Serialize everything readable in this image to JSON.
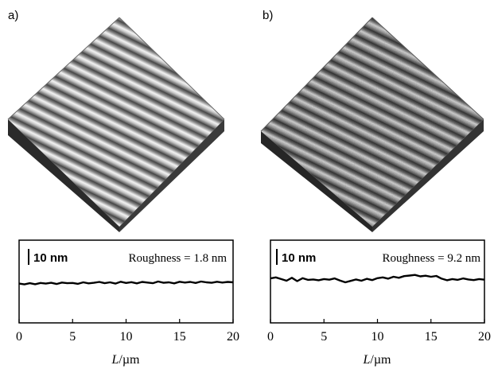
{
  "panels": [
    {
      "letter": "a)",
      "scale_bar_label": "10 nm",
      "roughness_label": "Roughness = 1.8 nm",
      "roughness_nm": 1.8,
      "x_label_italic": "L",
      "x_label_rest": "/µm"
    },
    {
      "letter": "b)",
      "scale_bar_label": "10 nm",
      "roughness_label": "Roughness = 9.2 nm",
      "roughness_nm": 9.2,
      "x_label_italic": "L",
      "x_label_rest": "/µm"
    }
  ],
  "chart_data": [
    {
      "type": "line",
      "xlim": [
        0,
        20
      ],
      "ylim": [
        0,
        40
      ],
      "xticks": [
        "0",
        "5",
        "10",
        "15",
        "20"
      ],
      "series": [
        {
          "x": [
            0,
            0.5,
            1,
            1.5,
            2,
            2.5,
            3,
            3.5,
            4,
            4.5,
            5,
            5.5,
            6,
            6.5,
            7,
            7.5,
            8,
            8.5,
            9,
            9.5,
            10,
            10.5,
            11,
            11.5,
            12,
            12.5,
            13,
            13.5,
            14,
            14.5,
            15,
            15.5,
            16,
            16.5,
            17,
            17.5,
            18,
            18.5,
            19,
            19.5,
            20
          ],
          "y": [
            19.0,
            18.6,
            19.2,
            18.7,
            19.3,
            19.0,
            19.4,
            18.8,
            19.5,
            19.2,
            19.3,
            18.9,
            19.6,
            19.1,
            19.4,
            19.8,
            19.2,
            19.6,
            19.0,
            19.9,
            19.3,
            19.7,
            19.1,
            19.8,
            19.5,
            19.2,
            20.0,
            19.4,
            19.6,
            19.1,
            19.9,
            19.5,
            19.8,
            19.3,
            20.0,
            19.6,
            19.4,
            19.9,
            19.5,
            19.8,
            19.6
          ]
        }
      ]
    },
    {
      "type": "line",
      "xlim": [
        0,
        20
      ],
      "ylim": [
        0,
        40
      ],
      "xticks": [
        "0",
        "5",
        "10",
        "15",
        "20"
      ],
      "series": [
        {
          "x": [
            0,
            0.5,
            1,
            1.5,
            2,
            2.5,
            3,
            3.5,
            4,
            4.5,
            5,
            5.5,
            6,
            6.5,
            7,
            7.5,
            8,
            8.5,
            9,
            9.5,
            10,
            10.5,
            11,
            11.5,
            12,
            12.5,
            13,
            13.5,
            14,
            14.5,
            15,
            15.5,
            16,
            16.5,
            17,
            17.5,
            18,
            18.5,
            19,
            19.5,
            20
          ],
          "y": [
            21.5,
            22.0,
            21.2,
            20.4,
            21.8,
            20.2,
            21.6,
            20.8,
            21.0,
            20.6,
            21.2,
            20.9,
            21.5,
            20.5,
            19.6,
            20.3,
            21.0,
            20.4,
            21.3,
            20.7,
            21.6,
            22.0,
            21.4,
            22.3,
            21.8,
            22.6,
            22.9,
            23.2,
            22.5,
            22.8,
            22.3,
            22.7,
            21.4,
            20.6,
            21.2,
            20.8,
            21.5,
            21.0,
            20.7,
            21.2,
            20.9
          ]
        }
      ]
    }
  ]
}
